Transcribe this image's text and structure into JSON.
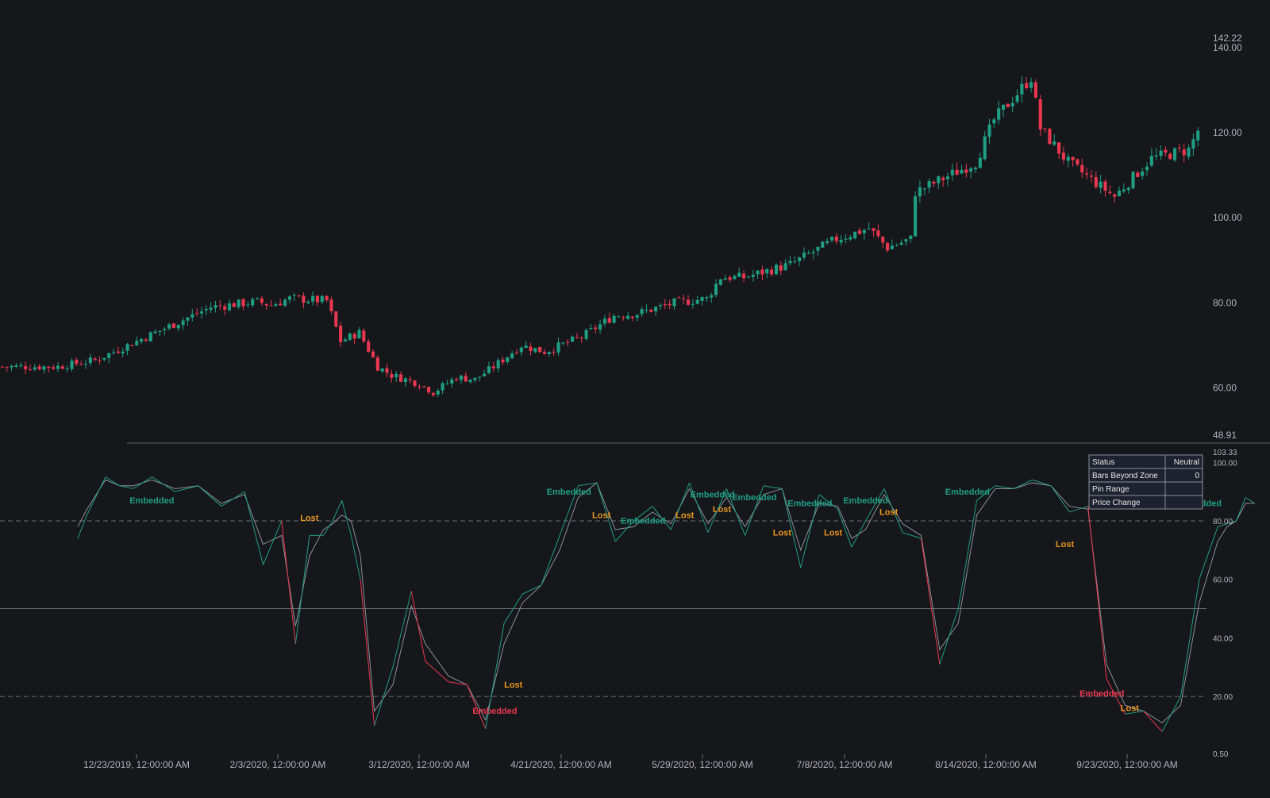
{
  "colors": {
    "background": "#16171b",
    "bull": "#1f9e83",
    "bear": "#e8384f",
    "fast_line_up": "#1f9e83",
    "fast_line_down": "#e8384f",
    "slow_line": "#8a8f99",
    "axis_text": "#aeb2ba",
    "embedded_green": "#1f9e83",
    "embedded_red": "#e8384f",
    "lost": "#e9961e",
    "table_bg": "#1e2230",
    "table_border": "#8a8f99"
  },
  "price_axis": {
    "ticks": [
      "140.00",
      "120.00",
      "100.00",
      "80.00",
      "60.00"
    ],
    "tick_values": [
      140,
      120,
      100,
      80,
      60
    ],
    "top_label": "142.22",
    "bottom_label": "48.91",
    "range": [
      48.91,
      142.22
    ]
  },
  "osc_axis": {
    "ticks": [
      "100.00",
      "80.00",
      "60.00",
      "40.00",
      "20.00"
    ],
    "tick_values": [
      100,
      80,
      60,
      40,
      20
    ],
    "top_label": "103.33",
    "bottom_label": "0.50",
    "range": [
      0.5,
      103.33
    ],
    "upper_zone": 80,
    "lower_zone": 20,
    "mid_line": 50
  },
  "time_axis": {
    "labels": [
      "12/23/2019, 12:00:00 AM",
      "2/3/2020, 12:00:00 AM",
      "3/12/2020, 12:00:00 AM",
      "4/21/2020, 12:00:00 AM",
      "5/29/2020, 12:00:00 AM",
      "7/8/2020, 12:00:00 AM",
      "8/14/2020, 12:00:00 AM",
      "9/23/2020, 12:00:00 AM"
    ]
  },
  "status_table": {
    "rows": [
      {
        "label": "Status",
        "value": "Neutral"
      },
      {
        "label": "Bars Beyond Zone",
        "value": "0"
      },
      {
        "label": "Pin Range",
        "value": ""
      },
      {
        "label": "Price Change",
        "value": ""
      }
    ]
  },
  "chart_data": [
    {
      "type": "candlestick",
      "title": "",
      "ylim": [
        48.91,
        142.22
      ],
      "close_path": [
        {
          "bar": 0,
          "close": 65.0
        },
        {
          "bar": 12,
          "close": 65.0
        },
        {
          "bar": 20,
          "close": 66.5
        },
        {
          "bar": 30,
          "close": 71.5
        },
        {
          "bar": 45,
          "close": 79.0
        },
        {
          "bar": 55,
          "close": 80.3
        },
        {
          "bar": 58,
          "close": 79.5
        },
        {
          "bar": 62,
          "close": 81.0
        },
        {
          "bar": 70,
          "close": 80.5
        },
        {
          "bar": 73,
          "close": 71.0
        },
        {
          "bar": 77,
          "close": 73.0
        },
        {
          "bar": 81,
          "close": 65.0
        },
        {
          "bar": 84,
          "close": 63.0
        },
        {
          "bar": 90,
          "close": 61.0
        },
        {
          "bar": 93,
          "close": 59.0
        },
        {
          "bar": 98,
          "close": 62.5
        },
        {
          "bar": 102,
          "close": 62.0
        },
        {
          "bar": 106,
          "close": 65.0
        },
        {
          "bar": 112,
          "close": 70.0
        },
        {
          "bar": 117,
          "close": 68.5
        },
        {
          "bar": 125,
          "close": 72.0
        },
        {
          "bar": 132,
          "close": 77.0
        },
        {
          "bar": 137,
          "close": 77.5
        },
        {
          "bar": 145,
          "close": 80.0
        },
        {
          "bar": 152,
          "close": 81.0
        },
        {
          "bar": 155,
          "close": 86.0
        },
        {
          "bar": 160,
          "close": 86.0
        },
        {
          "bar": 170,
          "close": 89.0
        },
        {
          "bar": 180,
          "close": 95.0
        },
        {
          "bar": 187,
          "close": 97.5
        },
        {
          "bar": 191,
          "close": 93.0
        },
        {
          "bar": 196,
          "close": 95.0
        },
        {
          "bar": 197,
          "close": 106.0
        },
        {
          "bar": 210,
          "close": 113.0
        },
        {
          "bar": 214,
          "close": 123.0
        },
        {
          "bar": 222,
          "close": 133.0
        },
        {
          "bar": 224,
          "close": 121.0
        },
        {
          "bar": 230,
          "close": 113.0
        },
        {
          "bar": 240,
          "close": 105.0
        },
        {
          "bar": 248,
          "close": 114.0
        },
        {
          "bar": 256,
          "close": 116.0
        },
        {
          "bar": 258,
          "close": 120.5
        }
      ],
      "n_bars": 260
    },
    {
      "type": "line",
      "title": "",
      "ylim": [
        0.5,
        103.33
      ],
      "series": [
        {
          "key": "fast",
          "x": [
            0,
            2,
            6,
            9,
            12,
            16,
            21,
            26,
            31,
            36,
            40,
            44,
            47,
            50,
            53,
            55,
            57,
            59,
            61,
            64,
            68,
            72,
            75,
            80,
            84,
            88,
            92,
            96,
            100,
            104,
            108,
            112,
            116,
            120,
            124,
            128,
            132,
            136,
            140,
            144,
            148,
            152,
            156,
            160,
            164,
            167,
            170,
            174,
            178,
            182,
            186,
            190,
            194,
            198,
            202,
            206,
            210,
            214,
            218,
            222,
            226,
            230,
            234,
            238,
            242,
            246,
            248,
            250,
            252,
            254
          ],
          "values": [
            74,
            82,
            95,
            92,
            91,
            95,
            90,
            92,
            85,
            90,
            65,
            80,
            38,
            75,
            75,
            80,
            87,
            75,
            60,
            10,
            30,
            56,
            32,
            25,
            24,
            9,
            45,
            55,
            58,
            75,
            92,
            93,
            73,
            80,
            85,
            77,
            93,
            76,
            91,
            75,
            92,
            91,
            64,
            89,
            84,
            71,
            80,
            91,
            76,
            74,
            31,
            50,
            87,
            92,
            91,
            94,
            92,
            83,
            85,
            26,
            14,
            15,
            8,
            20,
            60,
            78,
            79,
            80,
            88,
            86
          ]
        },
        {
          "key": "slow",
          "x": [
            0,
            2,
            6,
            9,
            12,
            16,
            21,
            26,
            31,
            36,
            40,
            44,
            47,
            50,
            53,
            55,
            57,
            59,
            61,
            64,
            68,
            72,
            75,
            80,
            84,
            88,
            92,
            96,
            100,
            104,
            108,
            112,
            116,
            120,
            124,
            128,
            132,
            136,
            140,
            144,
            148,
            152,
            156,
            160,
            164,
            167,
            170,
            174,
            178,
            182,
            186,
            190,
            194,
            198,
            202,
            206,
            210,
            214,
            218,
            222,
            226,
            230,
            234,
            238,
            242,
            246,
            248,
            250,
            252,
            254
          ],
          "values": [
            78,
            84,
            94,
            92,
            92,
            94,
            91,
            92,
            86,
            89,
            72,
            75,
            44,
            68,
            77,
            79,
            82,
            80,
            68,
            15,
            24,
            51,
            38,
            27,
            24,
            12,
            38,
            52,
            58,
            70,
            88,
            93,
            77,
            78,
            83,
            79,
            91,
            79,
            88,
            78,
            89,
            91,
            70,
            86,
            85,
            74,
            77,
            89,
            79,
            75,
            36,
            45,
            82,
            91,
            91,
            93,
            92,
            85,
            84,
            31,
            17,
            15,
            11,
            17,
            52,
            73,
            78,
            80,
            86,
            86
          ]
        }
      ],
      "annotations": [
        {
          "text": "Embedded",
          "kind": "embedded_green",
          "at": [
            16,
            86
          ]
        },
        {
          "text": "Lost",
          "kind": "lost",
          "at": [
            50,
            80
          ]
        },
        {
          "text": "Lost",
          "kind": "lost",
          "at": [
            94,
            23
          ]
        },
        {
          "text": "Embedded",
          "kind": "embedded_red",
          "at": [
            90,
            14
          ]
        },
        {
          "text": "Embedded",
          "kind": "embedded_green",
          "at": [
            106,
            89
          ]
        },
        {
          "text": "Lost",
          "kind": "lost",
          "at": [
            113,
            81
          ]
        },
        {
          "text": "Embedded",
          "kind": "embedded_green",
          "at": [
            122,
            79
          ]
        },
        {
          "text": "Lost",
          "kind": "lost",
          "at": [
            131,
            81
          ]
        },
        {
          "text": "Embedded",
          "kind": "embedded_green",
          "at": [
            137,
            88
          ]
        },
        {
          "text": "Lost",
          "kind": "lost",
          "at": [
            139,
            83
          ]
        },
        {
          "text": "Embedded",
          "kind": "embedded_green",
          "at": [
            146,
            87
          ]
        },
        {
          "text": "Lost",
          "kind": "lost",
          "at": [
            152,
            75
          ]
        },
        {
          "text": "Embedded",
          "kind": "embedded_green",
          "at": [
            158,
            85
          ]
        },
        {
          "text": "Lost",
          "kind": "lost",
          "at": [
            163,
            75
          ]
        },
        {
          "text": "Embedded",
          "kind": "embedded_green",
          "at": [
            170,
            86
          ]
        },
        {
          "text": "Lost",
          "kind": "lost",
          "at": [
            175,
            82
          ]
        },
        {
          "text": "Embedded",
          "kind": "embedded_green",
          "at": [
            192,
            89
          ]
        },
        {
          "text": "Lost",
          "kind": "lost",
          "at": [
            213,
            71
          ]
        },
        {
          "text": "Embedded",
          "kind": "embedded_red",
          "at": [
            221,
            20
          ]
        },
        {
          "text": "Lost",
          "kind": "lost",
          "at": [
            227,
            15
          ]
        },
        {
          "text": "Embedded",
          "kind": "embedded_green",
          "at": [
            242,
            85
          ]
        }
      ]
    }
  ]
}
